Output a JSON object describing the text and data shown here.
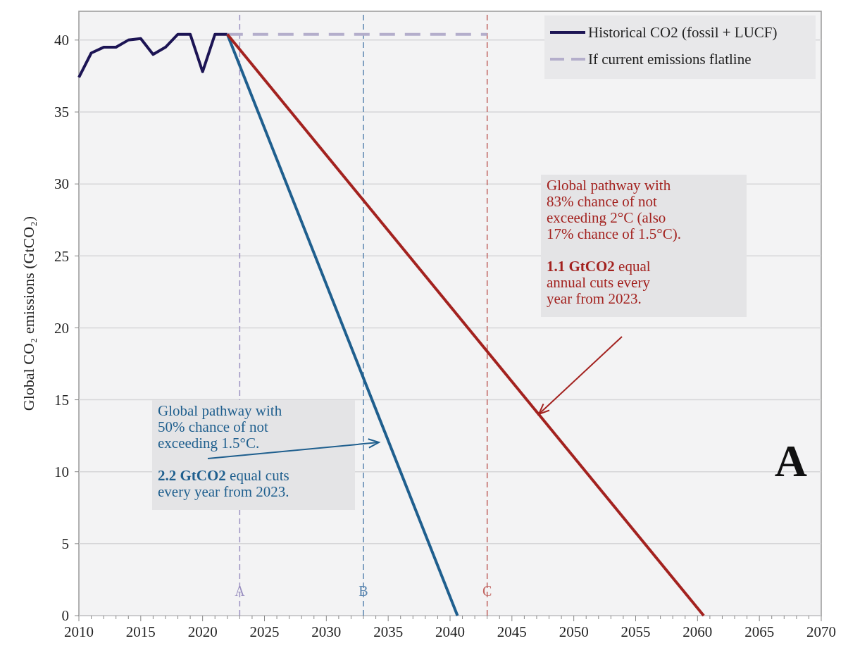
{
  "chart_data": {
    "type": "line",
    "ylabel": "Global CO₂ emissions (GtCO₂)",
    "xlim": [
      2010,
      2070
    ],
    "ylim": [
      0,
      42
    ],
    "xticks": [
      2010,
      {
        "value": 2011,
        "label": null
      },
      {
        "value": 2012,
        "label": null
      },
      {
        "value": 2013,
        "label": null
      },
      {
        "value": 2014,
        "label": null
      },
      2015,
      {
        "value": 2016,
        "label": null
      },
      {
        "value": 2017,
        "label": null
      },
      {
        "value": 2018,
        "label": null
      },
      {
        "value": 2019,
        "label": null
      },
      2020,
      {
        "value": 2021,
        "label": null
      },
      {
        "value": 2022,
        "label": null
      },
      {
        "value": 2023,
        "label": null
      },
      {
        "value": 2024,
        "label": null
      },
      2025,
      {
        "value": 2026,
        "label": null
      },
      {
        "value": 2027,
        "label": null
      },
      {
        "value": 2028,
        "label": null
      },
      {
        "value": 2029,
        "label": null
      },
      2030,
      {
        "value": 2031,
        "label": null
      },
      {
        "value": 2032,
        "label": null
      },
      {
        "value": 2033,
        "label": null
      },
      {
        "value": 2034,
        "label": null
      },
      2035,
      {
        "value": 2036,
        "label": null
      },
      {
        "value": 2037,
        "label": null
      },
      {
        "value": 2038,
        "label": null
      },
      {
        "value": 2039,
        "label": null
      },
      2040,
      {
        "value": 2041,
        "label": null
      },
      {
        "value": 2042,
        "label": null
      },
      {
        "value": 2043,
        "label": null
      },
      {
        "value": 2044,
        "label": null
      },
      2045,
      {
        "value": 2046,
        "label": null
      },
      {
        "value": 2047,
        "label": null
      },
      {
        "value": 2048,
        "label": null
      },
      {
        "value": 2049,
        "label": null
      },
      2050,
      {
        "value": 2051,
        "label": null
      },
      {
        "value": 2052,
        "label": null
      },
      {
        "value": 2053,
        "label": null
      },
      {
        "value": 2054,
        "label": null
      },
      2055,
      {
        "value": 2056,
        "label": null
      },
      {
        "value": 2057,
        "label": null
      },
      {
        "value": 2058,
        "label": null
      },
      {
        "value": 2059,
        "label": null
      },
      2060,
      {
        "value": 2061,
        "label": null
      },
      {
        "value": 2062,
        "label": null
      },
      {
        "value": 2063,
        "label": null
      },
      {
        "value": 2064,
        "label": null
      },
      2065,
      {
        "value": 2066,
        "label": null
      },
      {
        "value": 2067,
        "label": null
      },
      {
        "value": 2068,
        "label": null
      },
      {
        "value": 2069,
        "label": null
      },
      2070
    ],
    "yticks": [
      0,
      5,
      10,
      15,
      20,
      25,
      30,
      35,
      40
    ],
    "grid": "y",
    "legend": "top right",
    "series": [
      {
        "name": "Historical CO2 (fossil + LUCF)",
        "color": "#1c1454",
        "line_style": "solid",
        "x": [
          2010,
          2011,
          2012,
          2013,
          2014,
          2015,
          2016,
          2017,
          2018,
          2019,
          2020,
          2021,
          2022
        ],
        "values": [
          37.4,
          39.1,
          39.5,
          39.5,
          40.0,
          40.1,
          39.0,
          39.5,
          40.4,
          40.4,
          37.8,
          40.4,
          40.4
        ]
      },
      {
        "name": "If current emissions flatline",
        "color": "#b4aecb",
        "line_style": "dashed",
        "x": [
          2022,
          2043
        ],
        "values": [
          40.4,
          40.4
        ]
      },
      {
        "color": "#1f5f8e",
        "line_style": "solid",
        "x": [
          2022,
          2040.6
        ],
        "values": [
          40.4,
          0
        ]
      },
      {
        "color": "#a3221f",
        "line_style": "solid",
        "x": [
          2022,
          2060.5
        ],
        "values": [
          40.4,
          0
        ]
      }
    ],
    "ref_lines": [
      {
        "axis": "x",
        "value": 2023,
        "label": "A",
        "color": "#9a90c0",
        "line_style": "dashed"
      },
      {
        "axis": "x",
        "value": 2033,
        "label": "B",
        "color": "#5b86b0",
        "line_style": "dashed"
      },
      {
        "axis": "x",
        "value": 2043,
        "label": "C",
        "color": "#c0625e",
        "line_style": "dashed"
      }
    ],
    "annotations": [
      "Global pathway with 50% chance of not exceeding 1.5°C.\n\n2.2 GtCO2 equal cuts every year from 2023.",
      "Global pathway with 83% chance of not exceeding 2°C (also 17% chance of 1.5°C).\n\n1.1 GtCO2 equal annual cuts every year from 2023.",
      "A"
    ]
  }
}
